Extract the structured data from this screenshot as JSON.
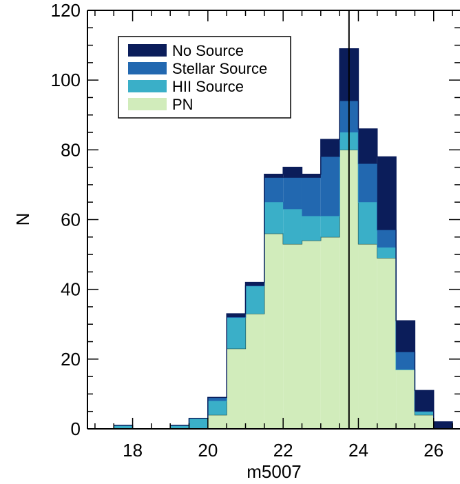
{
  "chart_data": {
    "type": "bar",
    "stacked": true,
    "histogram": true,
    "xlabel": "m5007",
    "ylabel": "N",
    "xlim": [
      16.8,
      26.7
    ],
    "ylim": [
      0,
      120
    ],
    "xticks": [
      18,
      20,
      22,
      24,
      26
    ],
    "yticks": [
      0,
      20,
      40,
      60,
      80,
      100,
      120
    ],
    "x_minor_step": 0.5,
    "y_minor_step": 5,
    "bin_width": 0.5,
    "bin_starts": [
      17.5,
      18.0,
      18.5,
      19.0,
      19.5,
      20.0,
      20.5,
      21.0,
      21.5,
      22.0,
      22.5,
      23.0,
      23.5,
      24.0,
      24.5,
      25.0,
      25.5,
      26.0
    ],
    "series": [
      {
        "name": "PN",
        "color": "#d1ecbb",
        "values": [
          0,
          0,
          0,
          0,
          0,
          4,
          23,
          33,
          56,
          53,
          54,
          55,
          80,
          53,
          49,
          17,
          4,
          0
        ]
      },
      {
        "name": "HII Source",
        "color": "#3aafc8",
        "values": [
          1,
          0,
          0,
          1,
          3,
          4,
          9,
          8,
          9,
          10,
          7,
          6,
          5,
          12,
          3,
          0,
          1,
          0
        ]
      },
      {
        "name": "Stellar Source",
        "color": "#2268b0",
        "values": [
          0,
          0,
          0,
          0,
          0,
          1,
          0,
          0,
          7,
          9,
          11,
          17,
          9,
          11,
          5,
          5,
          0,
          0
        ]
      },
      {
        "name": "No Source",
        "color": "#0b1d5a",
        "values": [
          0,
          0,
          0,
          0,
          0,
          0,
          1,
          1,
          1,
          3,
          1,
          5,
          15,
          10,
          21,
          9,
          6,
          2
        ]
      }
    ],
    "legend": {
      "placement": "top-left",
      "order": [
        "No Source",
        "Stellar Source",
        "HII Source",
        "PN"
      ]
    },
    "vertical_line": {
      "x": 23.75,
      "color": "#000000"
    }
  }
}
